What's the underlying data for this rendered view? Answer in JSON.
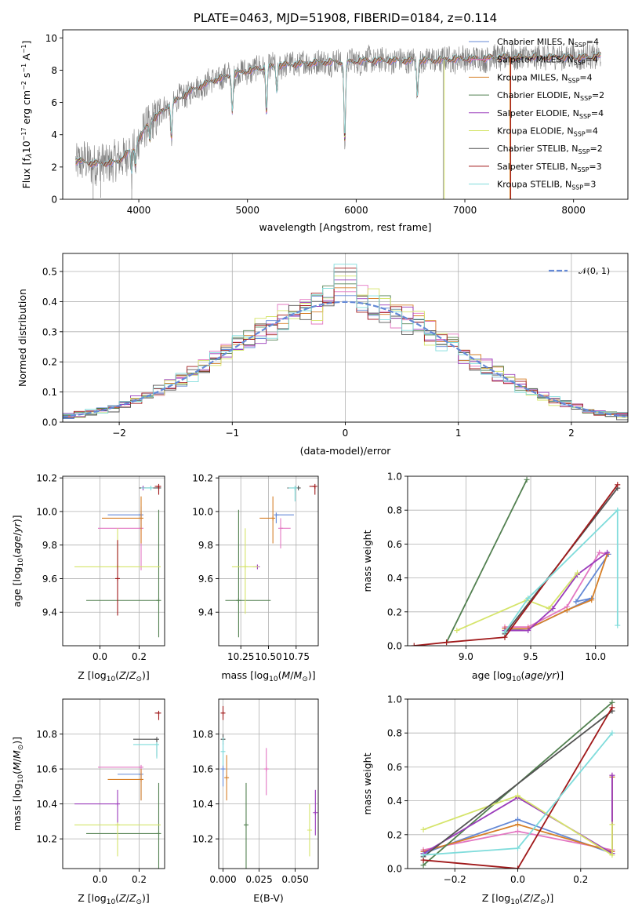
{
  "colors": {
    "Chabrier MILES": "#6489d6",
    "Salpeter MILES": "#e377c2",
    "Kroupa MILES": "#d67f27",
    "Chabrier ELODIE": "#528050",
    "Salpeter ELODIE": "#9a3bbb",
    "Kroupa ELODIE": "#d5e46a",
    "Chabrier STELIB": "#525252",
    "Salpeter STELIB": "#a0191a",
    "Kroupa STELIB": "#7fdcdb"
  },
  "chart_data": [
    {
      "type": "line",
      "title": "PLATE=0463, MJD=51908, FIBERID=0184, z=0.114",
      "xlabel": "wavelength [Angstrom, rest frame]",
      "ylabel": "Flux [f_λ 10^-17 erg cm^-2 s^-1 A^-1]",
      "xlim": [
        3300,
        8500
      ],
      "ylim": [
        0,
        10.5
      ],
      "xticks": [
        "4000",
        "5000",
        "6000",
        "7000",
        "8000"
      ],
      "yticks": [
        "0",
        "2",
        "4",
        "6",
        "8",
        "10"
      ],
      "legend_position": "right",
      "grid": false,
      "series": [
        {
          "name": "Chabrier MILES, N_SSP=4"
        },
        {
          "name": "Salpeter MILES, N_SSP=4"
        },
        {
          "name": "Kroupa MILES, N_SSP=4"
        },
        {
          "name": "Chabrier ELODIE, N_SSP=2"
        },
        {
          "name": "Salpeter ELODIE, N_SSP=4"
        },
        {
          "name": "Kroupa ELODIE, N_SSP=4"
        },
        {
          "name": "Chabrier STELIB, N_SSP=2"
        },
        {
          "name": "Salpeter STELIB, N_SSP=3"
        },
        {
          "name": "Kroupa STELIB, N_SSP=3"
        }
      ],
      "continuum": {
        "x": [
          3420,
          3600,
          3800,
          3950,
          4100,
          4300,
          4500,
          4700,
          4900,
          5100,
          5300,
          5500,
          5700,
          5900,
          6100,
          6300,
          6500,
          6700,
          6900,
          7100,
          7300,
          7500,
          7700,
          7900,
          8100,
          8250
        ],
        "y": [
          2.4,
          2.2,
          2.3,
          3.2,
          4.8,
          5.9,
          6.8,
          7.4,
          7.8,
          8.1,
          8.3,
          8.4,
          8.5,
          8.5,
          8.6,
          8.6,
          8.6,
          8.6,
          8.7,
          8.7,
          8.8,
          8.8,
          8.8,
          8.8,
          8.8,
          8.9
        ]
      }
    },
    {
      "type": "bar",
      "xlabel": "(data-model)/error",
      "ylabel": "Normed distribution",
      "xlim": [
        -2.5,
        2.5
      ],
      "ylim": [
        0,
        0.56
      ],
      "xticks": [
        "−2",
        "−1",
        "0",
        "1",
        "2"
      ],
      "yticks": [
        "0.0",
        "0.1",
        "0.2",
        "0.3",
        "0.4",
        "0.5"
      ],
      "grid": true,
      "reference_curve": {
        "name": "𝒩(0, 1)",
        "style": "dashed",
        "color": "#6489d6"
      },
      "legend_position": "top-right",
      "bin_width": 0.1
    },
    {
      "type": "scatter",
      "xlabel": "Z [log10(Z/Z⊙)]",
      "ylabel": "age  [log10(age/yr)]",
      "xlim": [
        -0.19,
        0.33
      ],
      "ylim": [
        9.2,
        10.21
      ],
      "xticks": [
        "0.0",
        "0.2"
      ],
      "yticks": [
        "9.4",
        "9.6",
        "9.8",
        "10.0",
        "10.2"
      ],
      "grid": true,
      "points": [
        {
          "series": "Chabrier MILES",
          "x": 0.21,
          "y": 9.98,
          "xerr": [
            0.17,
            0.0
          ],
          "yerr": [
            0.07,
            0.05
          ]
        },
        {
          "series": "Salpeter MILES",
          "x": 0.21,
          "y": 9.9,
          "xerr": [
            0.22,
            0.0
          ],
          "yerr": [
            0.25,
            0.09
          ]
        },
        {
          "series": "Kroupa MILES",
          "x": 0.21,
          "y": 9.96,
          "xerr": [
            0.2,
            0.0
          ],
          "yerr": [
            0.15,
            0.13
          ]
        },
        {
          "series": "Chabrier ELODIE",
          "x": 0.3,
          "y": 9.47,
          "xerr": [
            0.37,
            0.0
          ],
          "yerr": [
            0.22,
            0.54
          ]
        },
        {
          "series": "Salpeter ELODIE",
          "x": 0.22,
          "y": 10.14,
          "xerr": [
            0.0,
            0.0
          ],
          "yerr": [
            0.0,
            0.0
          ]
        },
        {
          "series": "Kroupa ELODIE",
          "x": 0.09,
          "y": 9.67,
          "xerr": [
            0.22,
            0.22
          ],
          "yerr": [
            0.0,
            0.23
          ]
        },
        {
          "series": "Chabrier STELIB",
          "x": 0.3,
          "y": 10.14,
          "xerr": [
            0.1,
            0.0
          ],
          "yerr": [
            0.0,
            0.0
          ]
        },
        {
          "series": "Salpeter STELIB",
          "x": 0.3,
          "y": 10.15,
          "xerr": [
            0.02,
            0.0
          ],
          "yerr": [
            0.05,
            0.0
          ]
        },
        {
          "series": "Kroupa STELIB",
          "x": 0.26,
          "y": 10.14,
          "xerr": [
            0.05,
            0.0
          ],
          "yerr": [
            0.0,
            0.0
          ]
        },
        {
          "series": "Salpeter STELIB",
          "x": 0.09,
          "y": 9.6,
          "xerr": [
            0.0,
            0.0
          ],
          "yerr": [
            0.22,
            0.23
          ]
        }
      ]
    },
    {
      "type": "scatter",
      "xlabel": "mass [log10(M/M⊙)]",
      "xlim": [
        10.05,
        10.95
      ],
      "ylim": [
        9.2,
        10.21
      ],
      "xticks": [
        "10.25",
        "10.50",
        "10.75"
      ],
      "yticks": [
        "9.4",
        "9.6",
        "9.8",
        "10.0",
        "10.2"
      ],
      "grid": true,
      "points": [
        {
          "series": "Chabrier MILES",
          "x": 10.57,
          "y": 9.98,
          "xerr": [
            0.0,
            0.16
          ],
          "yerr": [
            0.05,
            0.0
          ]
        },
        {
          "series": "Salpeter MILES",
          "x": 10.61,
          "y": 9.9,
          "xerr": [
            0.0,
            0.09
          ],
          "yerr": [
            0.12,
            0.06
          ]
        },
        {
          "series": "Kroupa MILES",
          "x": 10.54,
          "y": 9.96,
          "xerr": [
            0.12,
            0.0
          ],
          "yerr": [
            0.15,
            0.13
          ]
        },
        {
          "series": "Chabrier ELODIE",
          "x": 10.23,
          "y": 9.47,
          "xerr": [
            0.12,
            0.29
          ],
          "yerr": [
            0.22,
            0.54
          ]
        },
        {
          "series": "Salpeter ELODIE",
          "x": 10.4,
          "y": 9.67,
          "xerr": [
            0.04,
            0.0
          ],
          "yerr": [
            0.0,
            0.0
          ]
        },
        {
          "series": "Kroupa ELODIE",
          "x": 10.29,
          "y": 9.67,
          "xerr": [
            0.12,
            0.12
          ],
          "yerr": [
            0.28,
            0.23
          ]
        },
        {
          "series": "Chabrier STELIB",
          "x": 10.77,
          "y": 10.14,
          "xerr": [
            0.1,
            0.0
          ],
          "yerr": [
            0.0,
            0.0
          ]
        },
        {
          "series": "Salpeter STELIB",
          "x": 10.92,
          "y": 10.15,
          "xerr": [
            0.05,
            0.0
          ],
          "yerr": [
            0.05,
            0.0
          ]
        },
        {
          "series": "Kroupa STELIB",
          "x": 10.74,
          "y": 10.14,
          "xerr": [
            0.06,
            0.0
          ],
          "yerr": [
            0.08,
            0.0
          ]
        }
      ]
    },
    {
      "type": "line",
      "xlabel": "age  [log10(age/yr)]",
      "ylabel": "mass weight",
      "xlim": [
        8.55,
        10.25
      ],
      "ylim": [
        0,
        1.0
      ],
      "xticks": [
        "9.0",
        "9.5",
        "10.0"
      ],
      "yticks": [
        "0.0",
        "0.2",
        "0.4",
        "0.6",
        "0.8",
        "1.0"
      ],
      "grid": true,
      "series": [
        {
          "series": "Chabrier MILES",
          "x": [
            9.3,
            9.48,
            9.97,
            9.85,
            10.1
          ],
          "y": [
            0.09,
            0.1,
            0.28,
            0.26,
            0.54
          ]
        },
        {
          "series": "Salpeter MILES",
          "x": [
            9.3,
            9.48,
            9.78,
            10.03,
            10.09
          ],
          "y": [
            0.11,
            0.11,
            0.23,
            0.55,
            0.54
          ]
        },
        {
          "series": "Kroupa MILES",
          "x": [
            9.3,
            9.48,
            9.78,
            9.97,
            10.09
          ],
          "y": [
            0.1,
            0.1,
            0.21,
            0.27,
            0.54
          ]
        },
        {
          "series": "Chabrier ELODIE",
          "x": [
            8.85,
            9.47
          ],
          "y": [
            0.02,
            0.98
          ]
        },
        {
          "series": "Salpeter ELODIE",
          "x": [
            9.3,
            9.48,
            9.67,
            9.86,
            10.09
          ],
          "y": [
            0.09,
            0.09,
            0.22,
            0.42,
            0.55
          ]
        },
        {
          "series": "Kroupa ELODIE",
          "x": [
            8.93,
            9.47,
            9.64,
            9.86
          ],
          "y": [
            0.09,
            0.27,
            0.22,
            0.43
          ]
        },
        {
          "series": "Chabrier STELIB",
          "x": [
            9.3,
            10.17
          ],
          "y": [
            0.07,
            0.93
          ]
        },
        {
          "series": "Salpeter STELIB",
          "x": [
            8.6,
            8.85,
            9.3,
            10.17
          ],
          "y": [
            0.0,
            0.02,
            0.05,
            0.95
          ]
        },
        {
          "series": "Kroupa STELIB",
          "x": [
            9.3,
            9.48,
            10.17,
            10.17
          ],
          "y": [
            0.08,
            0.28,
            0.8,
            0.12
          ]
        }
      ]
    },
    {
      "type": "scatter",
      "xlabel": "Z [log10(Z/Z⊙)]",
      "ylabel": "mass [log10(M/M⊙)]",
      "xlim": [
        -0.19,
        0.33
      ],
      "ylim": [
        10.03,
        11.0
      ],
      "xticks": [
        "0.0",
        "0.2"
      ],
      "yticks": [
        "10.2",
        "10.4",
        "10.6",
        "10.8"
      ],
      "grid": true,
      "points": [
        {
          "series": "Chabrier MILES",
          "x": 0.21,
          "y": 10.57,
          "xerr": [
            0.12,
            0.0
          ],
          "yerr": [
            0.15,
            0.0
          ]
        },
        {
          "series": "Salpeter MILES",
          "x": 0.21,
          "y": 10.61,
          "xerr": [
            0.22,
            0.0
          ],
          "yerr": [
            0.08,
            0.0
          ]
        },
        {
          "series": "Kroupa MILES",
          "x": 0.21,
          "y": 10.54,
          "xerr": [
            0.17,
            0.0
          ],
          "yerr": [
            0.12,
            0.06
          ]
        },
        {
          "series": "Chabrier ELODIE",
          "x": 0.3,
          "y": 10.23,
          "xerr": [
            0.37,
            0.0
          ],
          "yerr": [
            0.2,
            0.29
          ]
        },
        {
          "series": "Salpeter ELODIE",
          "x": 0.09,
          "y": 10.4,
          "xerr": [
            0.22,
            0.0
          ],
          "yerr": [
            0.12,
            0.08
          ]
        },
        {
          "series": "Kroupa ELODIE",
          "x": 0.09,
          "y": 10.28,
          "xerr": [
            0.22,
            0.22
          ],
          "yerr": [
            0.18,
            0.0
          ]
        },
        {
          "series": "Chabrier STELIB",
          "x": 0.29,
          "y": 10.77,
          "xerr": [
            0.12,
            0.0
          ],
          "yerr": [
            0.1,
            0.0
          ]
        },
        {
          "series": "Salpeter STELIB",
          "x": 0.3,
          "y": 10.92,
          "xerr": [
            0.02,
            0.0
          ],
          "yerr": [
            0.04,
            0.0
          ]
        },
        {
          "series": "Kroupa STELIB",
          "x": 0.29,
          "y": 10.74,
          "xerr": [
            0.12,
            0.0
          ],
          "yerr": [
            0.08,
            0.0
          ]
        }
      ]
    },
    {
      "type": "scatter",
      "xlabel": "E(B-V)",
      "xlim": [
        -0.003,
        0.066
      ],
      "ylim": [
        10.03,
        11.0
      ],
      "xticks": [
        "0.000",
        "0.025",
        "0.050"
      ],
      "yticks": [
        "10.2",
        "10.4",
        "10.6",
        "10.8"
      ],
      "grid": true,
      "points": [
        {
          "series": "Chabrier MILES",
          "x": 0.0,
          "y": 10.6,
          "yerr": [
            0.1,
            0.15
          ]
        },
        {
          "series": "Salpeter MILES",
          "x": 0.03,
          "y": 10.6,
          "yerr": [
            0.15,
            0.12
          ]
        },
        {
          "series": "Kroupa MILES",
          "x": 0.0025,
          "y": 10.55,
          "yerr": [
            0.13,
            0.13
          ]
        },
        {
          "series": "Chabrier ELODIE",
          "x": 0.016,
          "y": 10.28,
          "yerr": [
            0.25,
            0.24
          ]
        },
        {
          "series": "Salpeter ELODIE",
          "x": 0.064,
          "y": 10.35,
          "yerr": [
            0.13,
            0.13
          ]
        },
        {
          "series": "Kroupa ELODIE",
          "x": 0.06,
          "y": 10.25,
          "yerr": [
            0.15,
            0.15
          ]
        },
        {
          "series": "Chabrier STELIB",
          "x": 0.0,
          "y": 10.77,
          "yerr": [
            0.03,
            0.03
          ]
        },
        {
          "series": "Salpeter STELIB",
          "x": 0.0,
          "y": 10.92,
          "yerr": [
            0.04,
            0.04
          ]
        },
        {
          "series": "Kroupa STELIB",
          "x": 0.0,
          "y": 10.7,
          "yerr": [
            0.08,
            0.08
          ]
        }
      ]
    },
    {
      "type": "line",
      "xlabel": "Z [log10(Z/Z⊙)]",
      "ylabel": "mass weight",
      "xlim": [
        -0.35,
        0.35
      ],
      "ylim": [
        0,
        1.0
      ],
      "xticks": [
        "−0.2",
        "0.0",
        "0.2"
      ],
      "yticks": [
        "0.0",
        "0.2",
        "0.4",
        "0.6",
        "0.8",
        "1.0"
      ],
      "grid": true,
      "series": [
        {
          "series": "Chabrier MILES",
          "x": [
            -0.3,
            0.0,
            0.3,
            0.3
          ],
          "y": [
            0.09,
            0.29,
            0.09,
            0.54
          ]
        },
        {
          "series": "Salpeter MILES",
          "x": [
            -0.3,
            0.0,
            0.3,
            0.3
          ],
          "y": [
            0.11,
            0.22,
            0.11,
            0.55
          ]
        },
        {
          "series": "Kroupa MILES",
          "x": [
            -0.3,
            0.0,
            0.3,
            0.3
          ],
          "y": [
            0.1,
            0.26,
            0.1,
            0.54
          ]
        },
        {
          "series": "Chabrier ELODIE",
          "x": [
            -0.3,
            0.3
          ],
          "y": [
            0.02,
            0.98
          ]
        },
        {
          "series": "Salpeter ELODIE",
          "x": [
            -0.3,
            0.0,
            0.3,
            0.3
          ],
          "y": [
            0.09,
            0.42,
            0.09,
            0.55
          ]
        },
        {
          "series": "Kroupa ELODIE",
          "x": [
            -0.3,
            0.0,
            0.3,
            0.3
          ],
          "y": [
            0.23,
            0.43,
            0.08,
            0.26
          ]
        },
        {
          "series": "Chabrier STELIB",
          "x": [
            -0.3,
            0.3
          ],
          "y": [
            0.07,
            0.93
          ]
        },
        {
          "series": "Salpeter STELIB",
          "x": [
            -0.3,
            0.0,
            0.3
          ],
          "y": [
            0.05,
            0.0,
            0.95
          ]
        },
        {
          "series": "Kroupa STELIB",
          "x": [
            -0.3,
            0.0,
            0.3
          ],
          "y": [
            0.08,
            0.12,
            0.8
          ]
        }
      ]
    }
  ]
}
